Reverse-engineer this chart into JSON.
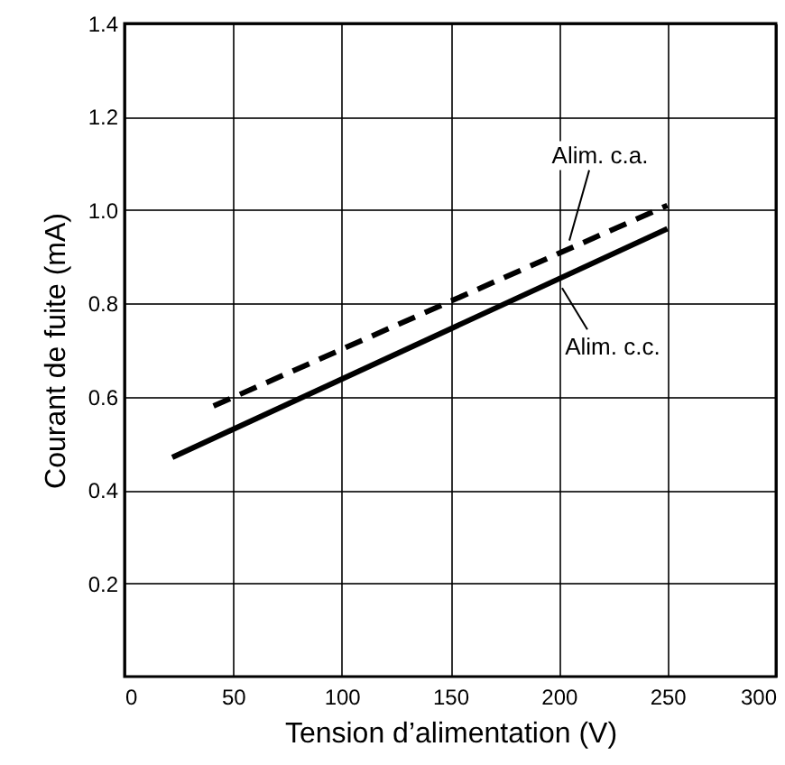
{
  "chart_data": {
    "type": "line",
    "xlabel": "Tension d’alimentation (V)",
    "ylabel": "Courant de fuite (mA)",
    "xlim": [
      0,
      300
    ],
    "ylim": [
      0,
      1.4
    ],
    "xticks": [
      0,
      50,
      100,
      150,
      200,
      250,
      300
    ],
    "yticks": [
      0.2,
      0.4,
      0.6,
      0.8,
      {
        "value": 1,
        "label": "1.0"
      },
      1.2,
      1.4
    ],
    "grid": true,
    "series": [
      {
        "name": "Alim. c.a.",
        "color": "#000000",
        "line_style": "dashed",
        "x": [
          41,
          250
        ],
        "values": [
          0.58,
          1.01
        ]
      },
      {
        "name": "Alim. c.c.",
        "color": "#000000",
        "line_style": "solid",
        "x": [
          22,
          250
        ],
        "values": [
          0.47,
          0.96
        ]
      }
    ]
  }
}
